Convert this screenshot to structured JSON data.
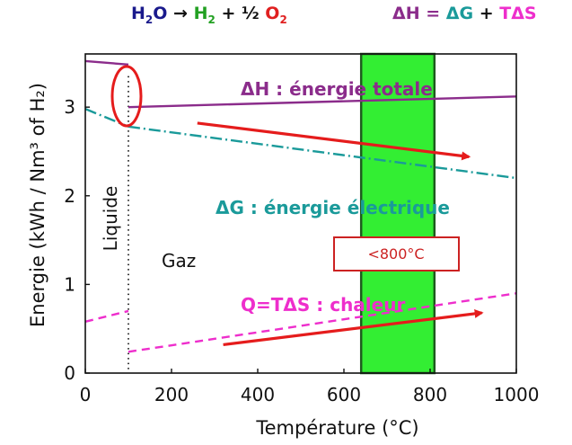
{
  "header": {
    "eq_left": {
      "h2o_h": "H",
      "h2o_2": "2",
      "h2o_o": "O",
      "arrow": " → ",
      "h2_h": "H",
      "h2_2": "2",
      "plus": " + ½ ",
      "o2_o": "O",
      "o2_2": "2"
    },
    "eq_right": {
      "dh": "ΔH",
      "eq": " = ",
      "dg": "ΔG",
      "plus": " + ",
      "tds": "TΔS"
    },
    "colors": {
      "water": "#1a1a8c",
      "hydrogen": "#22a022",
      "oxygen": "#e02020",
      "enthalpy": "#8b2c8b",
      "gibbs": "#1a9a9a",
      "heat": "#ee2ecc",
      "arrow": "#e51c1c",
      "band": "#33ee33"
    }
  },
  "chart_data": {
    "type": "line",
    "xlim": [
      0,
      1000
    ],
    "ylim": [
      0,
      3.6
    ],
    "xticks": [
      "0",
      "200",
      "400",
      "600",
      "800",
      "1000"
    ],
    "yticks": [
      "0",
      "1",
      "2",
      "3"
    ],
    "xlabel": "Température (°C)",
    "ylabel": "Energie (kWh / Nm³ of H₂)",
    "series": [
      {
        "name": "ΔH : énergie totale",
        "style": "solid",
        "color": "#8b2c8b",
        "segments": [
          [
            [
              0,
              3.52
            ],
            [
              100,
              3.48
            ]
          ],
          [
            [
              100,
              3.0
            ],
            [
              1000,
              3.12
            ]
          ]
        ]
      },
      {
        "name": "ΔG : énergie électrique",
        "style": "dashdot",
        "color": "#1a9a9a",
        "segments": [
          [
            [
              0,
              2.98
            ],
            [
              100,
              2.78
            ]
          ],
          [
            [
              100,
              2.78
            ],
            [
              1000,
              2.2
            ]
          ]
        ]
      },
      {
        "name": "Q=TΔS : chaleur",
        "style": "dashed",
        "color": "#ee2ecc",
        "segments": [
          [
            [
              0,
              0.58
            ],
            [
              100,
              0.7
            ]
          ],
          [
            [
              100,
              0.24
            ],
            [
              1000,
              0.9
            ]
          ]
        ]
      }
    ],
    "annotations": {
      "phase_line_x": 100,
      "liquid_label": "Liquide",
      "gas_label": "Gaz",
      "band": {
        "x0": 640,
        "x1": 810,
        "label": "<800°C"
      },
      "arrows": [
        {
          "from": [
            260,
            2.82
          ],
          "to": [
            890,
            2.44
          ]
        },
        {
          "from": [
            320,
            0.32
          ],
          "to": [
            920,
            0.68
          ]
        }
      ]
    }
  }
}
